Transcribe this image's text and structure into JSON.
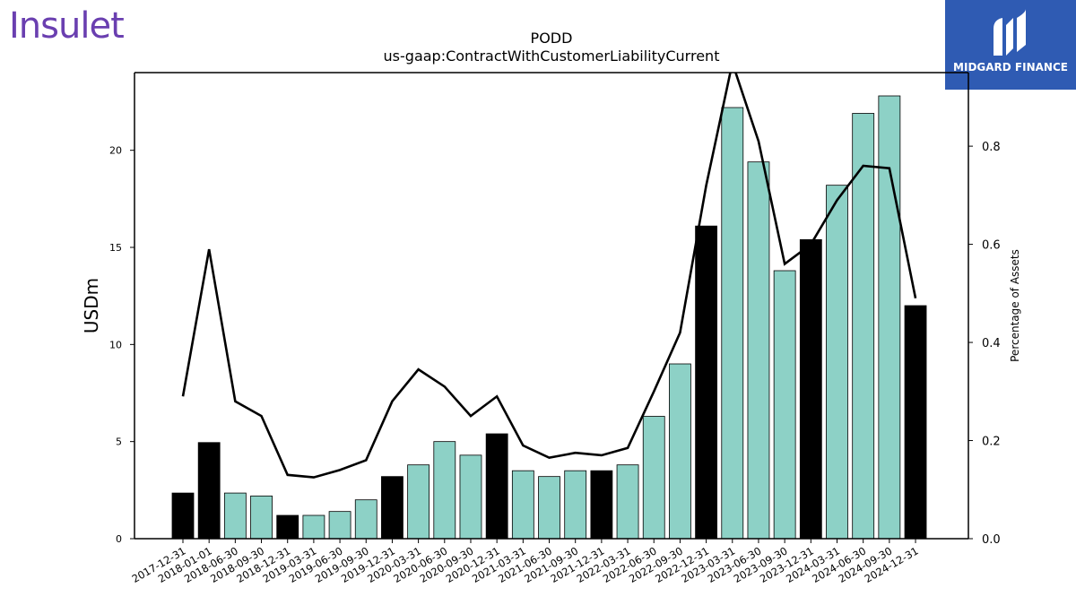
{
  "branding": {
    "company_logo": "Insulet",
    "publisher_logo": "MIDGARD FINANCE"
  },
  "chart_data": {
    "type": "bar",
    "title": "PODD",
    "subtitle": "us-gaap:ContractWithCustomerLiabilityCurrent",
    "ylabel": "USDm",
    "y2label": "Percentage of Assets",
    "ylim": [
      0,
      24
    ],
    "y2lim": [
      0,
      0.95
    ],
    "yticks": [
      0,
      5,
      10,
      15,
      20
    ],
    "y2ticks": [
      "0.0",
      "0.2",
      "0.4",
      "0.6",
      "0.8"
    ],
    "grid": false,
    "colors": {
      "annual": "#000000",
      "quarterly": "#8dd1c6",
      "line": "#000000"
    },
    "categories": [
      "2017-12-31",
      "2018-01-01",
      "2018-06-30",
      "2018-09-30",
      "2018-12-31",
      "2019-03-31",
      "2019-06-30",
      "2019-09-30",
      "2019-12-31",
      "2020-03-31",
      "2020-06-30",
      "2020-09-30",
      "2020-12-31",
      "2021-03-31",
      "2021-06-30",
      "2021-09-30",
      "2021-12-31",
      "2022-03-31",
      "2022-06-30",
      "2022-09-30",
      "2022-12-31",
      "2023-03-31",
      "2023-06-30",
      "2023-09-30",
      "2023-12-31",
      "2024-03-31",
      "2024-06-30",
      "2024-09-30",
      "2024-12-31"
    ],
    "series": [
      {
        "type": "bar",
        "values": [
          2.35,
          4.95,
          2.35,
          2.2,
          1.2,
          1.2,
          1.4,
          2.0,
          3.2,
          3.8,
          5.0,
          4.3,
          5.4,
          3.5,
          3.2,
          3.5,
          3.5,
          3.8,
          6.3,
          9.0,
          16.1,
          22.2,
          19.4,
          13.8,
          15.4,
          18.2,
          21.9,
          22.8,
          12.0
        ],
        "annual": [
          true,
          true,
          false,
          false,
          true,
          false,
          false,
          false,
          true,
          false,
          false,
          false,
          true,
          false,
          false,
          false,
          true,
          false,
          false,
          false,
          true,
          false,
          false,
          false,
          true,
          false,
          false,
          false,
          true
        ]
      },
      {
        "type": "line",
        "axis": "right",
        "values": [
          0.29,
          0.59,
          0.28,
          0.25,
          0.13,
          0.125,
          0.14,
          0.16,
          0.28,
          0.345,
          0.31,
          0.25,
          0.29,
          0.19,
          0.165,
          0.175,
          0.17,
          0.185,
          0.3,
          0.42,
          0.72,
          0.97,
          0.81,
          0.56,
          0.6,
          0.69,
          0.76,
          0.755,
          0.49
        ]
      }
    ]
  }
}
